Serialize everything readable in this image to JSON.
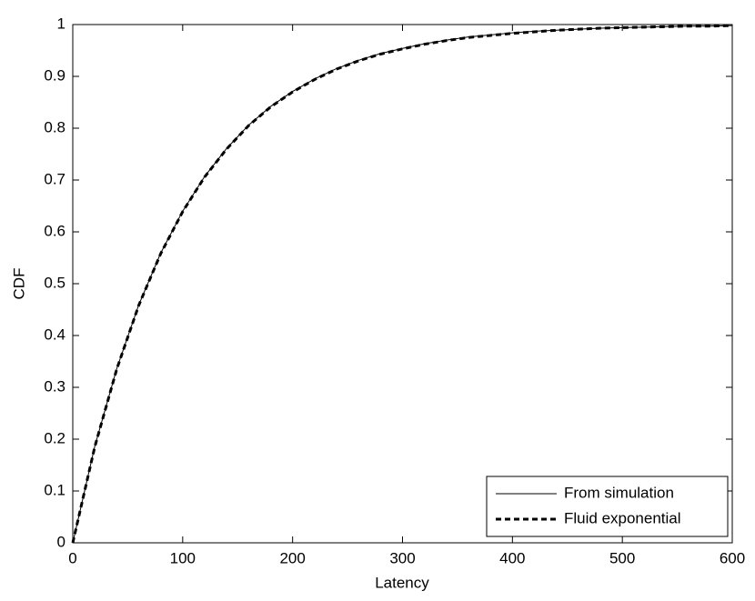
{
  "chart_data": {
    "type": "line",
    "xlabel": "Latency",
    "ylabel": "CDF",
    "x": [
      0,
      20,
      40,
      60,
      80,
      100,
      120,
      140,
      160,
      180,
      200,
      220,
      240,
      260,
      280,
      300,
      320,
      340,
      360,
      380,
      400,
      420,
      440,
      460,
      480,
      500,
      520,
      540,
      560,
      580,
      600
    ],
    "series": [
      {
        "name": "From simulation",
        "color": "#000000",
        "line_style": "solid",
        "values": [
          0,
          0.186,
          0.336,
          0.459,
          0.559,
          0.64,
          0.707,
          0.761,
          0.806,
          0.842,
          0.871,
          0.895,
          0.915,
          0.931,
          0.944,
          0.954,
          0.963,
          0.97,
          0.976,
          0.98,
          0.984,
          0.987,
          0.989,
          0.991,
          0.993,
          0.994,
          0.995,
          0.996,
          0.997,
          0.997,
          0.998
        ]
      },
      {
        "name": "Fluid exponential",
        "color": "#000000",
        "line_style": "dashed",
        "values": [
          0,
          0.185,
          0.335,
          0.458,
          0.558,
          0.639,
          0.706,
          0.76,
          0.805,
          0.841,
          0.87,
          0.894,
          0.914,
          0.93,
          0.943,
          0.953,
          0.962,
          0.969,
          0.975,
          0.979,
          0.983,
          0.986,
          0.989,
          0.991,
          0.993,
          0.994,
          0.995,
          0.996,
          0.997,
          0.997,
          0.998
        ]
      }
    ],
    "xlim": [
      0,
      600
    ],
    "xticks": [
      0,
      100,
      200,
      300,
      400,
      500,
      600
    ],
    "ylim": [
      0,
      1
    ],
    "yticks": [
      0,
      0.1,
      0.2,
      0.3,
      0.4,
      0.5,
      0.6,
      0.7,
      0.8,
      0.9,
      1
    ],
    "grid": false,
    "legend": "lower right"
  }
}
